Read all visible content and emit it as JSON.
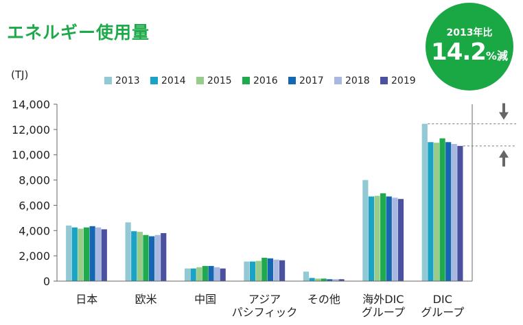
{
  "page": {
    "title": "エネルギー使用量",
    "badge": {
      "line1": "2013年比",
      "value": "14.2",
      "unit": "%減"
    }
  },
  "chart_data": {
    "type": "bar",
    "ylabel": "(TJ)",
    "ylim": [
      0,
      14000
    ],
    "yticks": [
      0,
      2000,
      4000,
      6000,
      8000,
      10000,
      12000,
      14000
    ],
    "ytick_labels": [
      "0",
      "2,000",
      "4,000",
      "6,000",
      "8,000",
      "10,000",
      "12,000",
      "14,000"
    ],
    "grid": false,
    "legend_position": "top",
    "categories": [
      [
        "日本"
      ],
      [
        "欧米"
      ],
      [
        "中国"
      ],
      [
        "アジア",
        "パシフィック"
      ],
      [
        "その他"
      ],
      [
        "海外DIC",
        "グループ"
      ],
      [
        "DIC",
        "グループ"
      ]
    ],
    "series": [
      {
        "name": "2013",
        "color": "#92c9d4",
        "values": [
          4400,
          4650,
          1000,
          1550,
          750,
          8000,
          12450
        ]
      },
      {
        "name": "2014",
        "color": "#1ba3c6",
        "values": [
          4250,
          3950,
          1000,
          1550,
          250,
          6700,
          11000
        ]
      },
      {
        "name": "2015",
        "color": "#97cc8a",
        "values": [
          4150,
          3900,
          1100,
          1600,
          200,
          6750,
          10950
        ]
      },
      {
        "name": "2016",
        "color": "#1faa4e",
        "values": [
          4250,
          3650,
          1200,
          1850,
          200,
          6950,
          11300
        ]
      },
      {
        "name": "2017",
        "color": "#1467b0",
        "values": [
          4350,
          3550,
          1200,
          1800,
          150,
          6700,
          11000
        ]
      },
      {
        "name": "2018",
        "color": "#a9b8e0",
        "values": [
          4250,
          3650,
          1100,
          1700,
          150,
          6600,
          10850
        ]
      },
      {
        "name": "2019",
        "color": "#4a52a0",
        "values": [
          4100,
          3800,
          1000,
          1650,
          150,
          6500,
          10700
        ]
      }
    ],
    "annotation": {
      "from_series": "2013",
      "to_series": "2019",
      "category_index": 6
    }
  }
}
